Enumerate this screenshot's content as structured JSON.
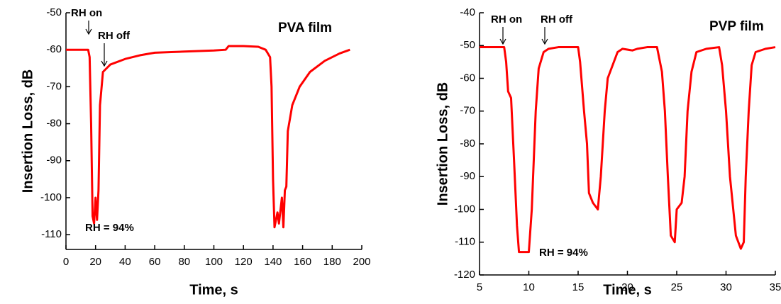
{
  "chart_data": [
    {
      "type": "line",
      "xlabel": "Time, s",
      "ylabel": "Insertion Loss, dB",
      "annotations": [
        "RH on",
        "RH off",
        "PVA film",
        "RH = 94%"
      ],
      "xlim": [
        0,
        200
      ],
      "xticks": [
        0,
        20,
        40,
        60,
        80,
        100,
        120,
        140,
        160,
        180,
        200
      ],
      "ylim": [
        -114,
        -50
      ],
      "yticks": [
        -110,
        -100,
        -90,
        -80,
        -70,
        -60,
        -50
      ],
      "series": [
        {
          "color": "#ff0000",
          "x": [
            0,
            15,
            16,
            17,
            18,
            19,
            20,
            21,
            22,
            23,
            25,
            30,
            40,
            50,
            60,
            80,
            100,
            108,
            110,
            120,
            130,
            135,
            138,
            139,
            140,
            141,
            143,
            144,
            146,
            147,
            148,
            149,
            150,
            153,
            158,
            165,
            175,
            185,
            192
          ],
          "values": [
            -60,
            -60,
            -62,
            -80,
            -105,
            -107,
            -100,
            -106,
            -98,
            -75,
            -66,
            -64,
            -62.5,
            -61.5,
            -60.8,
            -60.5,
            -60.2,
            -60,
            -59,
            -59,
            -59.2,
            -60,
            -62,
            -70,
            -95,
            -108,
            -104,
            -107,
            -100,
            -108,
            -98,
            -97,
            -82,
            -75,
            -70,
            -66,
            -63,
            -61,
            -60
          ]
        }
      ]
    },
    {
      "type": "line",
      "xlabel": "Time, s",
      "ylabel": "Insertion Loss, dB",
      "annotations": [
        "RH on",
        "RH off",
        "PVP film",
        "RH = 94%"
      ],
      "xlim": [
        5,
        35
      ],
      "xticks": [
        5,
        10,
        15,
        20,
        25,
        30,
        35
      ],
      "ylim": [
        -120,
        -40
      ],
      "yticks": [
        -120,
        -110,
        -100,
        -90,
        -80,
        -70,
        -60,
        -50,
        -40
      ],
      "series": [
        {
          "color": "#ff0000",
          "x": [
            5,
            7.5,
            7.7,
            7.9,
            8.2,
            8.5,
            8.8,
            9,
            10,
            10.3,
            10.7,
            11,
            11.5,
            12,
            13,
            15,
            15.2,
            15.6,
            15.9,
            16.1,
            16.5,
            17,
            17.3,
            17.7,
            18,
            18.5,
            19,
            19.5,
            20.5,
            21,
            22,
            23,
            23.5,
            23.8,
            24.1,
            24.4,
            24.8,
            25,
            25.5,
            25.8,
            26.1,
            26.5,
            27,
            28,
            29.3,
            29.6,
            30,
            30.4,
            31,
            31.5,
            31.8,
            32,
            32.3,
            32.6,
            33,
            34,
            35
          ],
          "values": [
            -50.5,
            -50.5,
            -55,
            -64,
            -66,
            -85,
            -105,
            -113,
            -113,
            -100,
            -70,
            -57,
            -52,
            -51,
            -50.5,
            -50.5,
            -55,
            -70,
            -80,
            -95,
            -98,
            -100,
            -90,
            -70,
            -60,
            -56,
            -52,
            -51,
            -51.5,
            -51,
            -50.5,
            -50.5,
            -58,
            -70,
            -90,
            -108,
            -110,
            -100,
            -98,
            -90,
            -70,
            -58,
            -52,
            -51,
            -50.5,
            -56,
            -70,
            -90,
            -108,
            -112,
            -110,
            -90,
            -70,
            -56,
            -52,
            -51,
            -50.5
          ]
        }
      ]
    }
  ]
}
